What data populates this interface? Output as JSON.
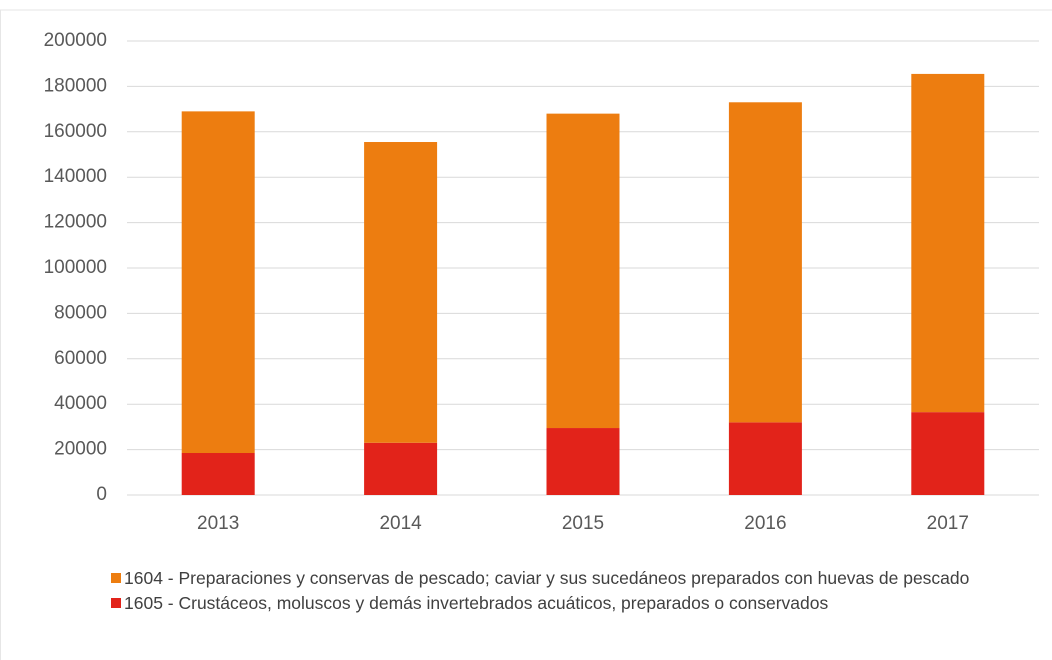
{
  "chart_data": {
    "type": "stacked_bar",
    "categories": [
      "2013",
      "2014",
      "2015",
      "2016",
      "2017"
    ],
    "series": [
      {
        "name": "1604 - Preparaciones y conservas de pescado; caviar y sus sucedáneos preparados con huevas de pescado",
        "color": "#ed7d10",
        "values": [
          150500,
          132500,
          138500,
          141000,
          149000
        ]
      },
      {
        "name": "1605 - Crustáceos, moluscos y demás invertebrados acuáticos, preparados o conservados",
        "color": "#e2231a",
        "values": [
          18500,
          23000,
          29500,
          32000,
          36500
        ]
      }
    ],
    "ylim": [
      0,
      200000
    ],
    "yticks": [
      0,
      20000,
      40000,
      60000,
      80000,
      100000,
      120000,
      140000,
      160000,
      180000,
      200000
    ],
    "grid": true
  }
}
